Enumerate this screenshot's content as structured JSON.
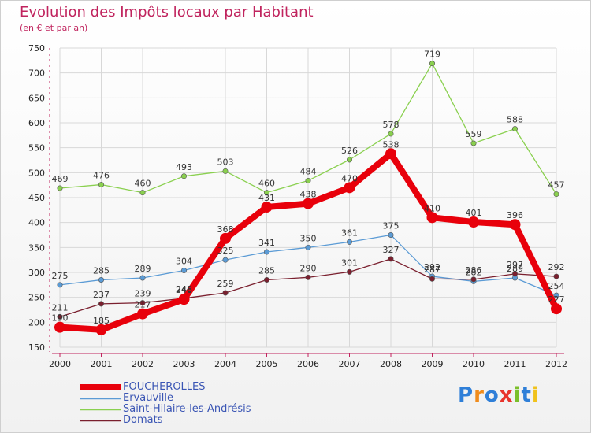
{
  "header": {
    "title": "Evolution des Impôts locaux par Habitant",
    "subtitle": "(en € et par an)"
  },
  "logo": {
    "text": "Proxiti",
    "letter_colors": [
      "#2f7fd8",
      "#f08c1c",
      "#2f7fd8",
      "#e8342c",
      "#7bbf2a",
      "#2f7fd8",
      "#f0c21c"
    ]
  },
  "colors": {
    "title": "#c0245e",
    "axis": "#c0245e",
    "grid": "#d8d8d8",
    "legend_text": "#3a55b4"
  },
  "chart_data": {
    "type": "line",
    "title": "Evolution des Impôts locaux par Habitant",
    "subtitle": "(en € et par an)",
    "x": [
      "2000",
      "2001",
      "2002",
      "2003",
      "2004",
      "2005",
      "2006",
      "2007",
      "2008",
      "2009",
      "2010",
      "2011",
      "2012"
    ],
    "ylim": [
      150,
      750
    ],
    "yticks": [
      150,
      200,
      250,
      300,
      350,
      400,
      450,
      500,
      550,
      600,
      650,
      700,
      750
    ],
    "grid": true,
    "legend_position": "bottom-left",
    "series": [
      {
        "name": "FOUCHEROLLES",
        "color": "#e8000b",
        "line_width": 8,
        "marker_size": 7,
        "values": [
          190,
          185,
          217,
          246,
          368,
          431,
          438,
          470,
          538,
          410,
          401,
          396,
          227
        ]
      },
      {
        "name": "Ervauville",
        "color": "#5b9bd5",
        "line_width": 1.3,
        "marker_size": 3.2,
        "values": [
          275,
          285,
          289,
          304,
          325,
          341,
          350,
          361,
          375,
          292,
          282,
          289,
          254
        ]
      },
      {
        "name": "Saint-Hilaire-les-Andrésis",
        "color": "#8ad04f",
        "line_width": 1.3,
        "marker_size": 3.2,
        "values": [
          469,
          476,
          460,
          493,
          503,
          460,
          484,
          526,
          578,
          719,
          559,
          588,
          457
        ]
      },
      {
        "name": "Domats",
        "color": "#7a1f2e",
        "line_width": 1.3,
        "marker_size": 3.2,
        "values": [
          211,
          237,
          239,
          248,
          259,
          285,
          290,
          301,
          327,
          287,
          286,
          297,
          292
        ]
      }
    ]
  }
}
